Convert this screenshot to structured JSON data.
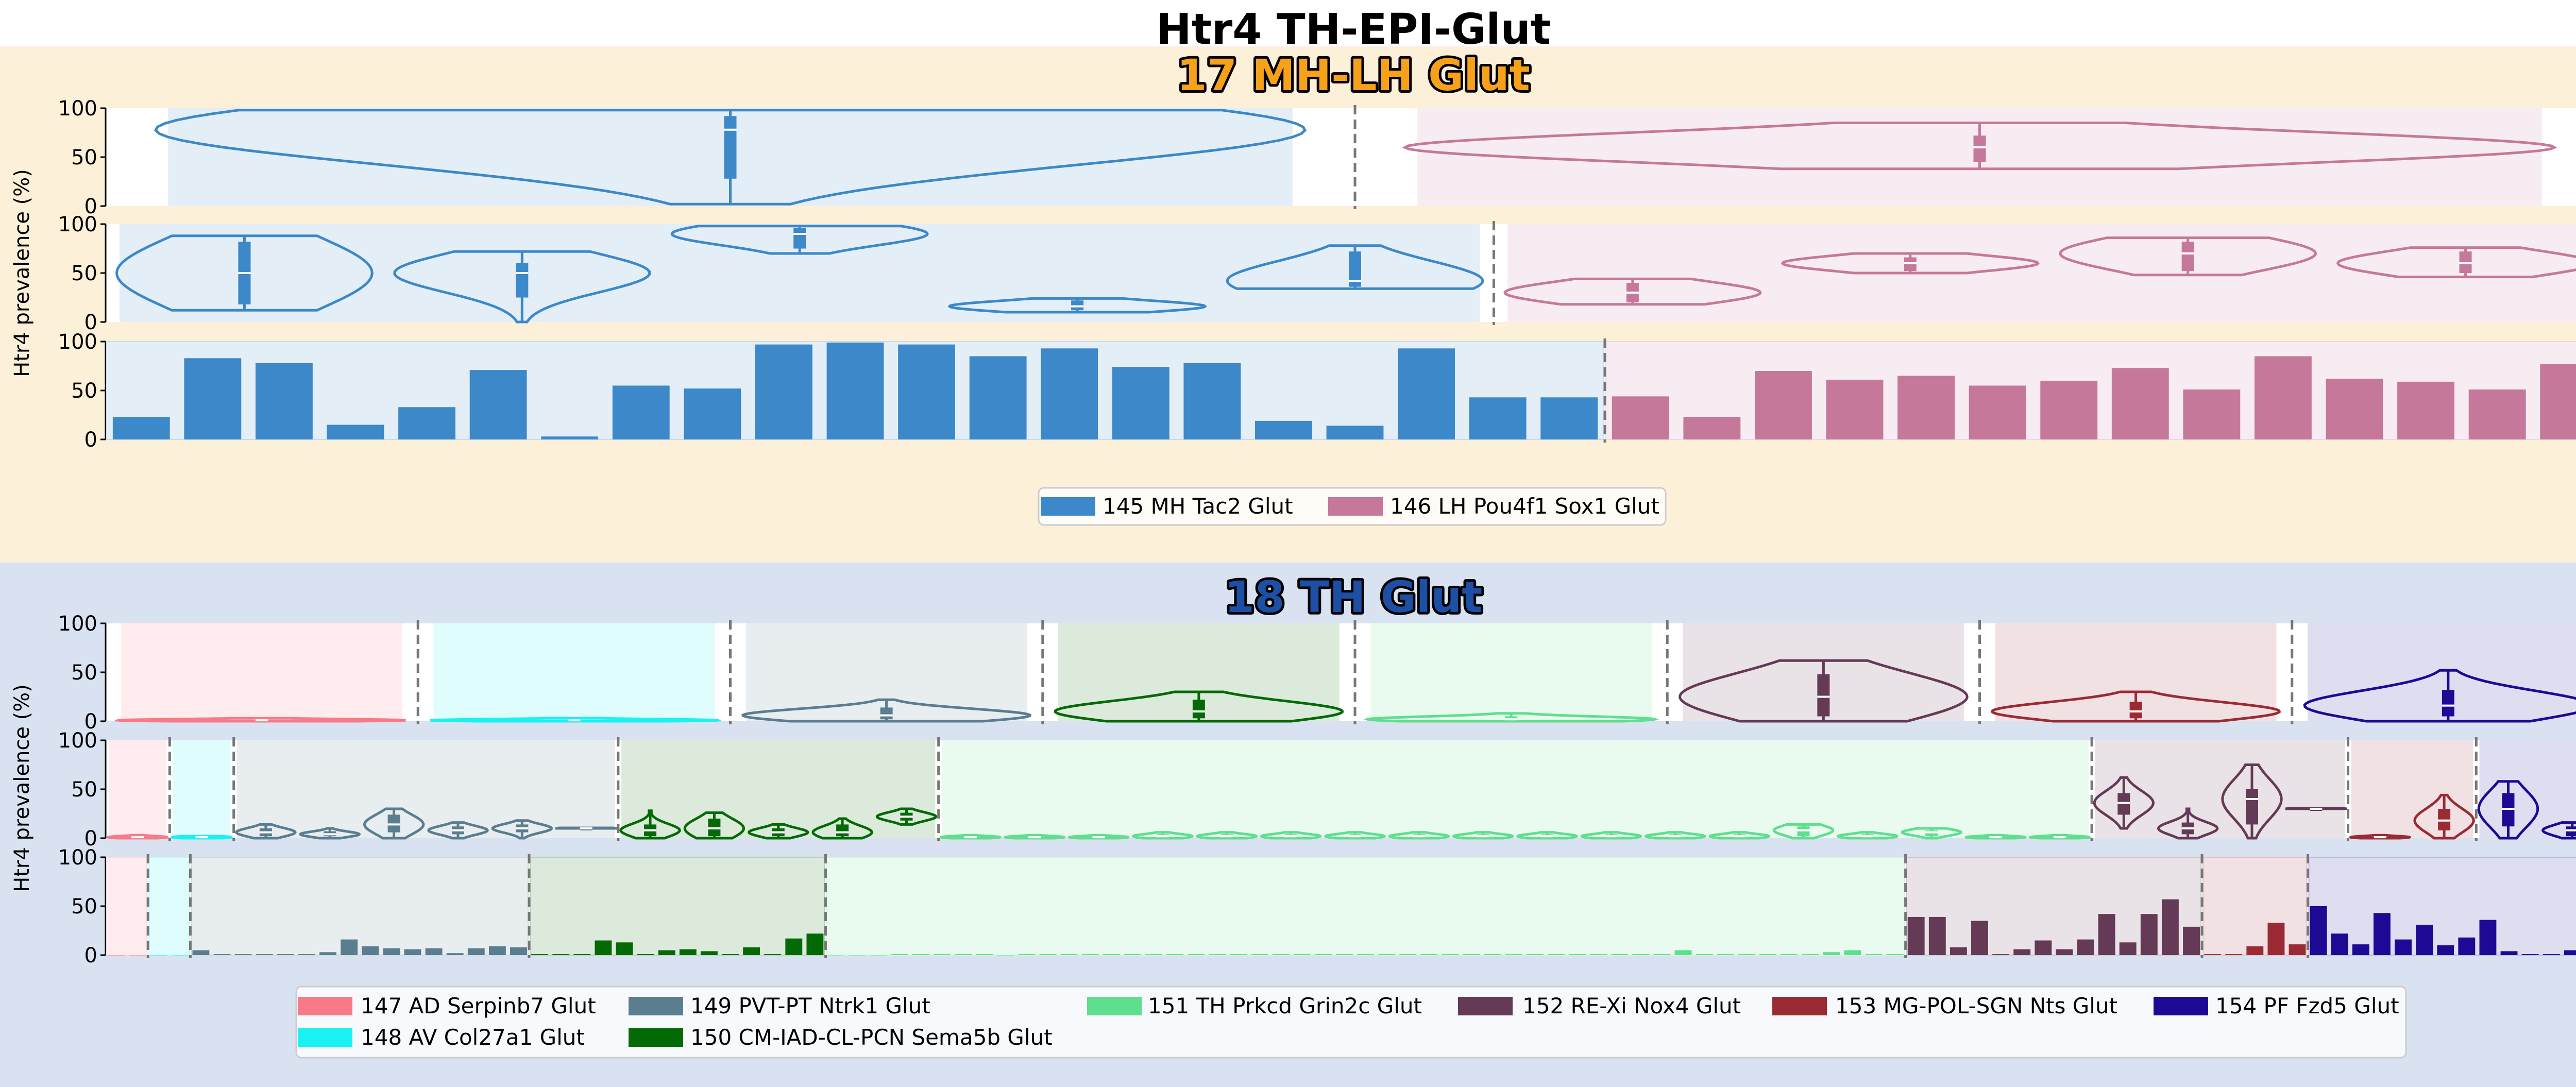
{
  "figure": {
    "title": "Htr4 TH-EPI-Glut",
    "ylabel": "Htr4 prevalence (%)",
    "yticks": [
      "0",
      "50",
      "100"
    ]
  },
  "groups": [
    {
      "title": "17 MH-LH Glut",
      "title_color": "#f5a11a",
      "background": "#fdf0d9",
      "legend": [
        {
          "label": "145 MH Tac2 Glut",
          "color": "#3c88c8"
        },
        {
          "label": "146 LH Pou4f1 Sox1 Glut",
          "color": "#c5789a"
        }
      ]
    },
    {
      "title": "18 TH Glut",
      "title_color": "#1d4fa5",
      "background": "#d9e2f0",
      "legend": [
        {
          "label": "147 AD Serpinb7 Glut",
          "color": "#f77a86"
        },
        {
          "label": "148 AV Col27a1 Glut",
          "color": "#19f2f2"
        },
        {
          "label": "149 PVT-PT Ntrk1 Glut",
          "color": "#5a7d8f"
        },
        {
          "label": "150 CM-IAD-CL-PCN Sema5b Glut",
          "color": "#046a05"
        },
        {
          "label": "151 TH Prkcd Grin2c Glut",
          "color": "#5fdf8e"
        },
        {
          "label": "152 RE-Xi Nox4 Glut",
          "color": "#643a56"
        },
        {
          "label": "153 MG-POL-SGN Nts Glut",
          "color": "#9a2b35"
        },
        {
          "label": "154 PF Fzd5 Glut",
          "color": "#1c0a95"
        }
      ]
    }
  ],
  "chart_data": [
    {
      "type": "violin",
      "group": "17 MH-LH Glut",
      "level": "class-level",
      "ylim": [
        0,
        100
      ],
      "ylabel": "Htr4 prevalence (%)",
      "series": [
        {
          "name": "145 MH Tac2 Glut",
          "median": 78,
          "q1": 28,
          "q3": 92,
          "min": 2,
          "max": 98
        },
        {
          "name": "146 LH Pou4f1 Sox1 Glut",
          "median": 60,
          "q1": 45,
          "q3": 72,
          "min": 38,
          "max": 85
        }
      ]
    },
    {
      "type": "violin",
      "group": "17 MH-LH Glut",
      "level": "supertype-level",
      "ylim": [
        0,
        100
      ],
      "ylabel": "Htr4 prevalence (%)",
      "series": [
        {
          "name": "145 MH Tac2 Glut",
          "median": 50,
          "q1": 18,
          "q3": 82,
          "min": 12,
          "max": 88
        },
        {
          "name": "145 MH Tac2 Glut",
          "median": 50,
          "q1": 25,
          "q3": 60,
          "min": 0,
          "max": 72
        },
        {
          "name": "145 MH Tac2 Glut",
          "median": 90,
          "q1": 75,
          "q3": 96,
          "min": 70,
          "max": 98
        },
        {
          "name": "145 MH Tac2 Glut",
          "median": 16,
          "q1": 12,
          "q3": 22,
          "min": 10,
          "max": 24
        },
        {
          "name": "145 MH Tac2 Glut",
          "median": 42,
          "q1": 36,
          "q3": 72,
          "min": 34,
          "max": 78
        },
        {
          "name": "146 LH Pou4f1 Sox1 Glut",
          "median": 30,
          "q1": 20,
          "q3": 40,
          "min": 18,
          "max": 44
        },
        {
          "name": "146 LH Pou4f1 Sox1 Glut",
          "median": 60,
          "q1": 52,
          "q3": 66,
          "min": 50,
          "max": 70
        },
        {
          "name": "146 LH Pou4f1 Sox1 Glut",
          "median": 70,
          "q1": 52,
          "q3": 82,
          "min": 48,
          "max": 86
        },
        {
          "name": "146 LH Pou4f1 Sox1 Glut",
          "median": 60,
          "q1": 50,
          "q3": 72,
          "min": 46,
          "max": 76
        }
      ]
    },
    {
      "type": "bar",
      "group": "17 MH-LH Glut",
      "level": "cluster-level",
      "ylim": [
        0,
        100
      ],
      "ylabel": "Htr4 prevalence (%)",
      "series": [
        {
          "name": "145 MH Tac2 Glut",
          "values": [
            23,
            83,
            78,
            15,
            33,
            71,
            3,
            55,
            52,
            97,
            99,
            97,
            85,
            93,
            74,
            78,
            19,
            14,
            93,
            43,
            43
          ]
        },
        {
          "name": "146 LH Pou4f1 Sox1 Glut",
          "values": [
            44,
            23,
            70,
            61,
            65,
            55,
            60,
            73,
            51,
            85,
            62,
            59,
            51,
            77
          ]
        }
      ]
    },
    {
      "type": "violin",
      "group": "18 TH Glut",
      "level": "class-level",
      "ylim": [
        0,
        100
      ],
      "ylabel": "Htr4 prevalence (%)",
      "series": [
        {
          "name": "147 AD Serpinb7 Glut",
          "median": 1,
          "q1": 0,
          "q3": 2,
          "min": 0,
          "max": 3
        },
        {
          "name": "148 AV Col27a1 Glut",
          "median": 1,
          "q1": 0,
          "q3": 2,
          "min": 0,
          "max": 3
        },
        {
          "name": "149 PVT-PT Ntrk1 Glut",
          "median": 6,
          "q1": 2,
          "q3": 14,
          "min": 0,
          "max": 22
        },
        {
          "name": "150 CM-IAD-CL-PCN Sema5b Glut",
          "median": 10,
          "q1": 3,
          "q3": 22,
          "min": 0,
          "max": 30
        },
        {
          "name": "151 TH Prkcd Grin2c Glut",
          "median": 2,
          "q1": 0,
          "q3": 5,
          "min": 0,
          "max": 8
        },
        {
          "name": "152 RE-Xi Nox4 Glut",
          "median": 25,
          "q1": 5,
          "q3": 48,
          "min": 0,
          "max": 62
        },
        {
          "name": "153 MG-POL-SGN Nts Glut",
          "median": 10,
          "q1": 3,
          "q3": 20,
          "min": 0,
          "max": 30
        },
        {
          "name": "154 PF Fzd5 Glut",
          "median": 16,
          "q1": 5,
          "q3": 32,
          "min": 0,
          "max": 52
        }
      ]
    },
    {
      "type": "violin",
      "group": "18 TH Glut",
      "level": "supertype-level",
      "ylim": [
        0,
        100
      ],
      "ylabel": "Htr4 prevalence (%)",
      "series": [
        {
          "name": "147 AD Serpinb7 Glut",
          "median": 1,
          "q1": 0,
          "q3": 2,
          "min": 0,
          "max": 3
        },
        {
          "name": "148 AV Col27a1 Glut",
          "median": 1,
          "q1": 0,
          "q3": 1,
          "min": 0,
          "max": 2
        },
        {
          "name": "149 PVT-PT Ntrk1 Glut",
          "median": 6,
          "q1": 2,
          "q3": 10,
          "min": 0,
          "max": 14
        },
        {
          "name": "149 PVT-PT Ntrk1 Glut",
          "median": 4,
          "q1": 2,
          "q3": 7,
          "min": 0,
          "max": 10
        },
        {
          "name": "149 PVT-PT Ntrk1 Glut",
          "median": 14,
          "q1": 6,
          "q3": 24,
          "min": 0,
          "max": 30
        },
        {
          "name": "149 PVT-PT Ntrk1 Glut",
          "median": 8,
          "q1": 4,
          "q3": 12,
          "min": 0,
          "max": 16
        },
        {
          "name": "149 PVT-PT Ntrk1 Glut",
          "median": 10,
          "q1": 6,
          "q3": 14,
          "min": 0,
          "max": 18
        },
        {
          "name": "149 PVT-PT Ntrk1 Glut",
          "median": 10,
          "q1": 10,
          "q3": 10,
          "min": 10,
          "max": 10
        },
        {
          "name": "150 CM-IAD-CL-PCN Sema5b Glut",
          "median": 8,
          "q1": 2,
          "q3": 14,
          "min": 0,
          "max": 28
        },
        {
          "name": "150 CM-IAD-CL-PCN Sema5b Glut",
          "median": 10,
          "q1": 2,
          "q3": 20,
          "min": 0,
          "max": 26
        },
        {
          "name": "150 CM-IAD-CL-PCN Sema5b Glut",
          "median": 6,
          "q1": 2,
          "q3": 10,
          "min": 0,
          "max": 14
        },
        {
          "name": "150 CM-IAD-CL-PCN Sema5b Glut",
          "median": 6,
          "q1": 2,
          "q3": 14,
          "min": 0,
          "max": 20
        },
        {
          "name": "150 CM-IAD-CL-PCN Sema5b Glut",
          "median": 22,
          "q1": 18,
          "q3": 26,
          "min": 14,
          "max": 30
        },
        {
          "name": "151 TH Prkcd Grin2c Glut",
          "median": 1,
          "q1": 0,
          "q3": 2,
          "min": 0,
          "max": 3
        },
        {
          "name": "151 TH Prkcd Grin2c Glut",
          "median": 1,
          "q1": 0,
          "q3": 2,
          "min": 0,
          "max": 3
        },
        {
          "name": "151 TH Prkcd Grin2c Glut",
          "median": 1,
          "q1": 0,
          "q3": 2,
          "min": 0,
          "max": 3
        },
        {
          "name": "151 TH Prkcd Grin2c Glut",
          "median": 2,
          "q1": 0,
          "q3": 4,
          "min": 0,
          "max": 6
        },
        {
          "name": "151 TH Prkcd Grin2c Glut",
          "median": 2,
          "q1": 0,
          "q3": 4,
          "min": 0,
          "max": 6
        },
        {
          "name": "151 TH Prkcd Grin2c Glut",
          "median": 2,
          "q1": 0,
          "q3": 4,
          "min": 0,
          "max": 6
        },
        {
          "name": "151 TH Prkcd Grin2c Glut",
          "median": 2,
          "q1": 0,
          "q3": 4,
          "min": 0,
          "max": 6
        },
        {
          "name": "151 TH Prkcd Grin2c Glut",
          "median": 2,
          "q1": 0,
          "q3": 4,
          "min": 0,
          "max": 6
        },
        {
          "name": "151 TH Prkcd Grin2c Glut",
          "median": 2,
          "q1": 0,
          "q3": 4,
          "min": 0,
          "max": 6
        },
        {
          "name": "151 TH Prkcd Grin2c Glut",
          "median": 2,
          "q1": 0,
          "q3": 4,
          "min": 0,
          "max": 6
        },
        {
          "name": "151 TH Prkcd Grin2c Glut",
          "median": 2,
          "q1": 0,
          "q3": 4,
          "min": 0,
          "max": 6
        },
        {
          "name": "151 TH Prkcd Grin2c Glut",
          "median": 2,
          "q1": 0,
          "q3": 4,
          "min": 0,
          "max": 6
        },
        {
          "name": "151 TH Prkcd Grin2c Glut",
          "median": 2,
          "q1": 0,
          "q3": 4,
          "min": 0,
          "max": 6
        },
        {
          "name": "151 TH Prkcd Grin2c Glut",
          "median": 8,
          "q1": 2,
          "q3": 12,
          "min": 0,
          "max": 14
        },
        {
          "name": "151 TH Prkcd Grin2c Glut",
          "median": 2,
          "q1": 0,
          "q3": 4,
          "min": 0,
          "max": 6
        },
        {
          "name": "151 TH Prkcd Grin2c Glut",
          "median": 6,
          "q1": 2,
          "q3": 8,
          "min": 0,
          "max": 10
        },
        {
          "name": "151 TH Prkcd Grin2c Glut",
          "median": 1,
          "q1": 0,
          "q3": 2,
          "min": 0,
          "max": 3
        },
        {
          "name": "151 TH Prkcd Grin2c Glut",
          "median": 1,
          "q1": 0,
          "q3": 2,
          "min": 0,
          "max": 3
        },
        {
          "name": "152 RE-Xi Nox4 Glut",
          "median": 36,
          "q1": 24,
          "q3": 46,
          "min": 10,
          "max": 62
        },
        {
          "name": "152 RE-Xi Nox4 Glut",
          "median": 10,
          "q1": 4,
          "q3": 16,
          "min": 0,
          "max": 30
        },
        {
          "name": "152 RE-Xi Nox4 Glut",
          "median": 40,
          "q1": 14,
          "q3": 50,
          "min": 0,
          "max": 75
        },
        {
          "name": "152 RE-Xi Nox4 Glut",
          "median": 30,
          "q1": 30,
          "q3": 30,
          "min": 30,
          "max": 30
        },
        {
          "name": "153 MG-POL-SGN Nts Glut",
          "median": 1,
          "q1": 0,
          "q3": 2,
          "min": 0,
          "max": 3
        },
        {
          "name": "153 MG-POL-SGN Nts Glut",
          "median": 18,
          "q1": 8,
          "q3": 30,
          "min": 0,
          "max": 44
        },
        {
          "name": "154 PF Fzd5 Glut",
          "median": 30,
          "q1": 12,
          "q3": 46,
          "min": 0,
          "max": 58
        },
        {
          "name": "154 PF Fzd5 Glut",
          "median": 8,
          "q1": 2,
          "q3": 12,
          "min": 0,
          "max": 16
        }
      ]
    },
    {
      "type": "bar",
      "group": "18 TH Glut",
      "level": "cluster-level",
      "ylim": [
        0,
        100
      ],
      "ylabel": "Htr4 prevalence (%)",
      "series": [
        {
          "name": "147 AD Serpinb7 Glut",
          "values": [
            0,
            0
          ]
        },
        {
          "name": "148 AV Col27a1 Glut",
          "values": [
            0,
            0
          ]
        },
        {
          "name": "149 PVT-PT Ntrk1 Glut",
          "values": [
            5,
            1,
            1,
            1,
            1,
            1,
            3,
            16,
            9,
            7,
            6,
            7,
            2,
            7,
            9,
            8
          ]
        },
        {
          "name": "150 CM-IAD-CL-PCN Sema5b Glut",
          "values": [
            1,
            1,
            1,
            15,
            13,
            1,
            5,
            6,
            4,
            1,
            8,
            1,
            17,
            22
          ]
        },
        {
          "name": "151 TH Prkcd Grin2c Glut",
          "values": [
            0,
            0,
            0,
            1,
            1,
            1,
            1,
            1,
            0,
            1,
            1,
            1,
            1,
            1,
            1,
            1,
            1,
            1,
            1,
            1,
            1,
            1,
            1,
            1,
            1,
            1,
            1,
            1,
            1,
            1,
            1,
            1,
            1,
            1,
            1,
            1,
            1,
            1,
            1,
            1,
            5,
            1,
            1,
            1,
            1,
            1,
            1,
            3,
            5,
            1,
            1
          ]
        },
        {
          "name": "152 RE-Xi Nox4 Glut",
          "values": [
            39,
            39,
            8,
            35,
            1,
            6,
            15,
            6,
            16,
            42,
            13,
            42,
            57,
            29
          ]
        },
        {
          "name": "153 MG-POL-SGN Nts Glut",
          "values": [
            1,
            1,
            9,
            33,
            11
          ]
        },
        {
          "name": "154 PF Fzd5 Glut",
          "values": [
            50,
            22,
            11,
            43,
            16,
            31,
            10,
            18,
            36,
            4,
            1,
            1,
            5,
            11
          ]
        }
      ]
    }
  ]
}
